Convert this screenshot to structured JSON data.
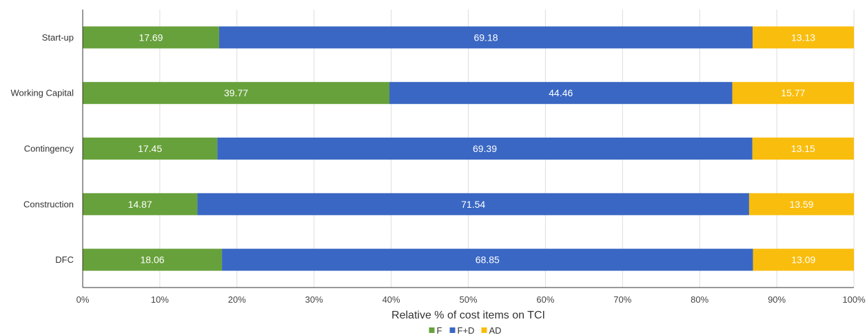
{
  "chart_data": {
    "type": "bar",
    "orientation": "horizontal",
    "stacked": true,
    "categories": [
      "Start-up",
      "Working Capital",
      "Contingency",
      "Construction",
      "DFC"
    ],
    "series": [
      {
        "name": "F",
        "color": "#67a13b",
        "values": [
          17.69,
          39.77,
          17.45,
          14.87,
          18.06
        ]
      },
      {
        "name": "F+D",
        "color": "#3a67c3",
        "values": [
          69.18,
          44.46,
          69.39,
          71.54,
          68.85
        ]
      },
      {
        "name": "AD",
        "color": "#f9bd0d",
        "values": [
          13.13,
          15.77,
          13.15,
          13.59,
          13.09
        ]
      }
    ],
    "xlabel": "Relative % of cost items on TCI",
    "ylabel": "",
    "title": "",
    "xlim": [
      0,
      100
    ],
    "x_ticks": [
      "0%",
      "10%",
      "20%",
      "30%",
      "40%",
      "50%",
      "60%",
      "70%",
      "80%",
      "90%",
      "100%"
    ],
    "grid": "vertical",
    "legend_position": "bottom"
  }
}
